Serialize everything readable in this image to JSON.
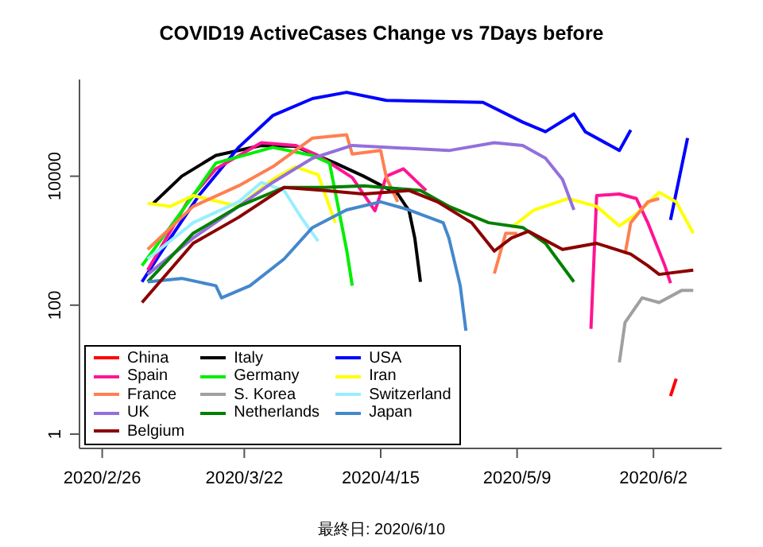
{
  "chart_data": {
    "type": "line",
    "title": "COVID19 ActiveCases Change vs 7Days before",
    "annotations": [
      "最終日: 2020/6/10"
    ],
    "log": true,
    "legend": "bottom left",
    "marker": "none",
    "line_style": "solid",
    "xlim": [
      "2020-02-22",
      "2020-06-14"
    ],
    "xticks": [
      {
        "value": "2020-02-26",
        "label": "2020/2/26"
      },
      {
        "value": "2020-03-22",
        "label": "2020/3/22"
      },
      {
        "value": "2020-04-15",
        "label": "2020/4/15"
      },
      {
        "value": "2020-05-09",
        "label": "2020/5/9"
      },
      {
        "value": "2020-06-02",
        "label": "2020/6/2"
      }
    ],
    "ylim": [
      0.6,
      316000
    ],
    "yticks": [
      1,
      100,
      10000
    ],
    "series": [
      {
        "name": "China",
        "color": "#ff0000",
        "x": [
          "2020-06-05",
          "2020-06-06"
        ],
        "values": [
          3.9,
          7.2
        ]
      },
      {
        "name": "Italy",
        "color": "#000000",
        "x": [
          "2020-03-06",
          "2020-03-11",
          "2020-03-17",
          "2020-03-25",
          "2020-03-31",
          "2020-04-07",
          "2020-04-12",
          "2020-04-18",
          "2020-04-20",
          "2020-04-21",
          "2020-04-22"
        ],
        "values": [
          3800,
          10000,
          21000,
          30000,
          29000,
          16000,
          10000,
          5300,
          2900,
          1100,
          230
        ]
      },
      {
        "name": "USA",
        "color": "#0000ff",
        "x": [
          "2020-03-04",
          "2020-03-09",
          "2020-03-14",
          "2020-03-21",
          "2020-03-27",
          "2020-04-03",
          "2020-04-09",
          "2020-04-16",
          "2020-05-03",
          "2020-05-10",
          "2020-05-14",
          "2020-05-19",
          "2020-05-21",
          "2020-05-27",
          "2020-05-29",
          "2020-06-01",
          "2020-06-05",
          "2020-06-08"
        ],
        "values": [
          230,
          1100,
          5000,
          28000,
          87000,
          160000,
          200000,
          150000,
          140000,
          69000,
          49000,
          92000,
          49000,
          25000,
          52000,
          null,
          2100,
          39000
        ]
      },
      {
        "name": "Spain",
        "color": "#ff1493",
        "x": [
          "2020-03-05",
          "2020-03-12",
          "2020-03-17",
          "2020-03-25",
          "2020-03-31",
          "2020-04-04",
          "2020-04-10",
          "2020-04-14",
          "2020-04-16",
          "2020-04-19",
          "2020-04-23",
          "2020-05-01",
          "2020-05-22",
          "2020-05-23",
          "2020-05-27",
          "2020-05-30",
          "2020-06-01",
          "2020-06-04",
          "2020-06-05"
        ],
        "values": [
          350,
          4000,
          13000,
          33000,
          30000,
          21000,
          9500,
          2900,
          10000,
          13000,
          6000,
          null,
          43,
          5000,
          5300,
          4500,
          1900,
          410,
          220
        ]
      },
      {
        "name": "Germany",
        "color": "#00ee00",
        "x": [
          "2020-03-04",
          "2020-03-13",
          "2020-03-17",
          "2020-03-27",
          "2020-04-03",
          "2020-04-06",
          "2020-04-09",
          "2020-04-10"
        ],
        "values": [
          410,
          5000,
          16000,
          28000,
          21000,
          16000,
          730,
          200
        ]
      },
      {
        "name": "Iran",
        "color": "#ffff00",
        "x": [
          "2020-03-05",
          "2020-03-09",
          "2020-03-13",
          "2020-03-21",
          "2020-03-27",
          "2020-03-31",
          "2020-04-04",
          "2020-04-07",
          "2020-04-20",
          "2020-05-08",
          "2020-05-12",
          "2020-05-18",
          "2020-05-23",
          "2020-05-27",
          "2020-05-30",
          "2020-06-03",
          "2020-06-06",
          "2020-06-09"
        ],
        "values": [
          3800,
          3400,
          5000,
          3400,
          8900,
          14000,
          10500,
          1900,
          null,
          1600,
          3000,
          4500,
          3400,
          1700,
          2600,
          5600,
          4000,
          1300
        ]
      },
      {
        "name": "France",
        "color": "#ff7f50",
        "x": [
          "2020-03-05",
          "2020-03-13",
          "2020-03-21",
          "2020-03-27",
          "2020-04-03",
          "2020-04-09",
          "2020-04-10",
          "2020-04-15",
          "2020-04-16",
          "2020-04-18",
          "2020-04-30",
          "2020-05-05",
          "2020-05-07",
          "2020-05-09",
          "2020-05-20",
          "2020-05-28",
          "2020-05-29",
          "2020-06-01",
          "2020-06-03"
        ],
        "values": [
          730,
          3400,
          7100,
          14000,
          39000,
          44000,
          22000,
          25000,
          9500,
          4000,
          null,
          310,
          1300,
          1300,
          null,
          620,
          1900,
          4000,
          4500
        ]
      },
      {
        "name": "S. Korea",
        "color": "#a0a0a0",
        "x": [
          "2020-05-27",
          "2020-05-28",
          "2020-05-31",
          "2020-06-03",
          "2020-06-07",
          "2020-06-09"
        ],
        "values": [
          13,
          54,
          130,
          110,
          170,
          170
        ]
      },
      {
        "name": "Switzerland",
        "color": "#99eeff",
        "x": [
          "2020-03-05",
          "2020-03-13",
          "2020-03-21",
          "2020-03-25",
          "2020-03-29",
          "2020-04-01",
          "2020-04-04"
        ],
        "values": [
          520,
          1900,
          4000,
          8000,
          6000,
          2300,
          980
        ]
      },
      {
        "name": "UK",
        "color": "#9370db",
        "x": [
          "2020-03-05",
          "2020-03-13",
          "2020-03-21",
          "2020-03-27",
          "2020-04-03",
          "2020-04-10",
          "2020-04-27",
          "2020-05-05",
          "2020-05-10",
          "2020-05-14",
          "2020-05-17",
          "2020-05-19"
        ],
        "values": [
          300,
          1100,
          3400,
          8000,
          19000,
          30000,
          25000,
          33000,
          30000,
          19000,
          8900,
          3000
        ]
      },
      {
        "name": "Netherlands",
        "color": "#008000",
        "x": [
          "2020-03-05",
          "2020-03-13",
          "2020-03-21",
          "2020-03-29",
          "2020-04-05",
          "2020-04-12",
          "2020-04-22",
          "2020-04-27",
          "2020-05-04",
          "2020-05-10",
          "2020-05-14",
          "2020-05-19"
        ],
        "values": [
          230,
          1300,
          3400,
          6700,
          6700,
          7100,
          6000,
          3400,
          1900,
          1600,
          910,
          230
        ]
      },
      {
        "name": "Japan",
        "color": "#4488cc",
        "x": [
          "2020-03-05",
          "2020-03-11",
          "2020-03-17",
          "2020-03-18",
          "2020-03-23",
          "2020-03-29",
          "2020-04-03",
          "2020-04-09",
          "2020-04-15",
          "2020-04-20",
          "2020-04-26",
          "2020-04-27",
          "2020-04-29",
          "2020-04-30"
        ],
        "values": [
          230,
          260,
          200,
          130,
          200,
          520,
          1600,
          3000,
          4000,
          3000,
          1900,
          1100,
          200,
          40
        ]
      },
      {
        "name": "Belgium",
        "color": "#8b0000",
        "x": [
          "2020-03-04",
          "2020-03-13",
          "2020-03-21",
          "2020-03-29",
          "2020-04-05",
          "2020-04-12",
          "2020-04-20",
          "2020-04-25",
          "2020-05-01",
          "2020-05-05",
          "2020-05-08",
          "2020-05-11",
          "2020-05-17",
          "2020-05-23",
          "2020-05-29",
          "2020-06-01",
          "2020-06-03",
          "2020-06-09"
        ],
        "values": [
          110,
          910,
          2300,
          6700,
          6000,
          5300,
          6000,
          4000,
          1900,
          690,
          1100,
          1400,
          730,
          910,
          620,
          410,
          300,
          350
        ]
      }
    ]
  }
}
